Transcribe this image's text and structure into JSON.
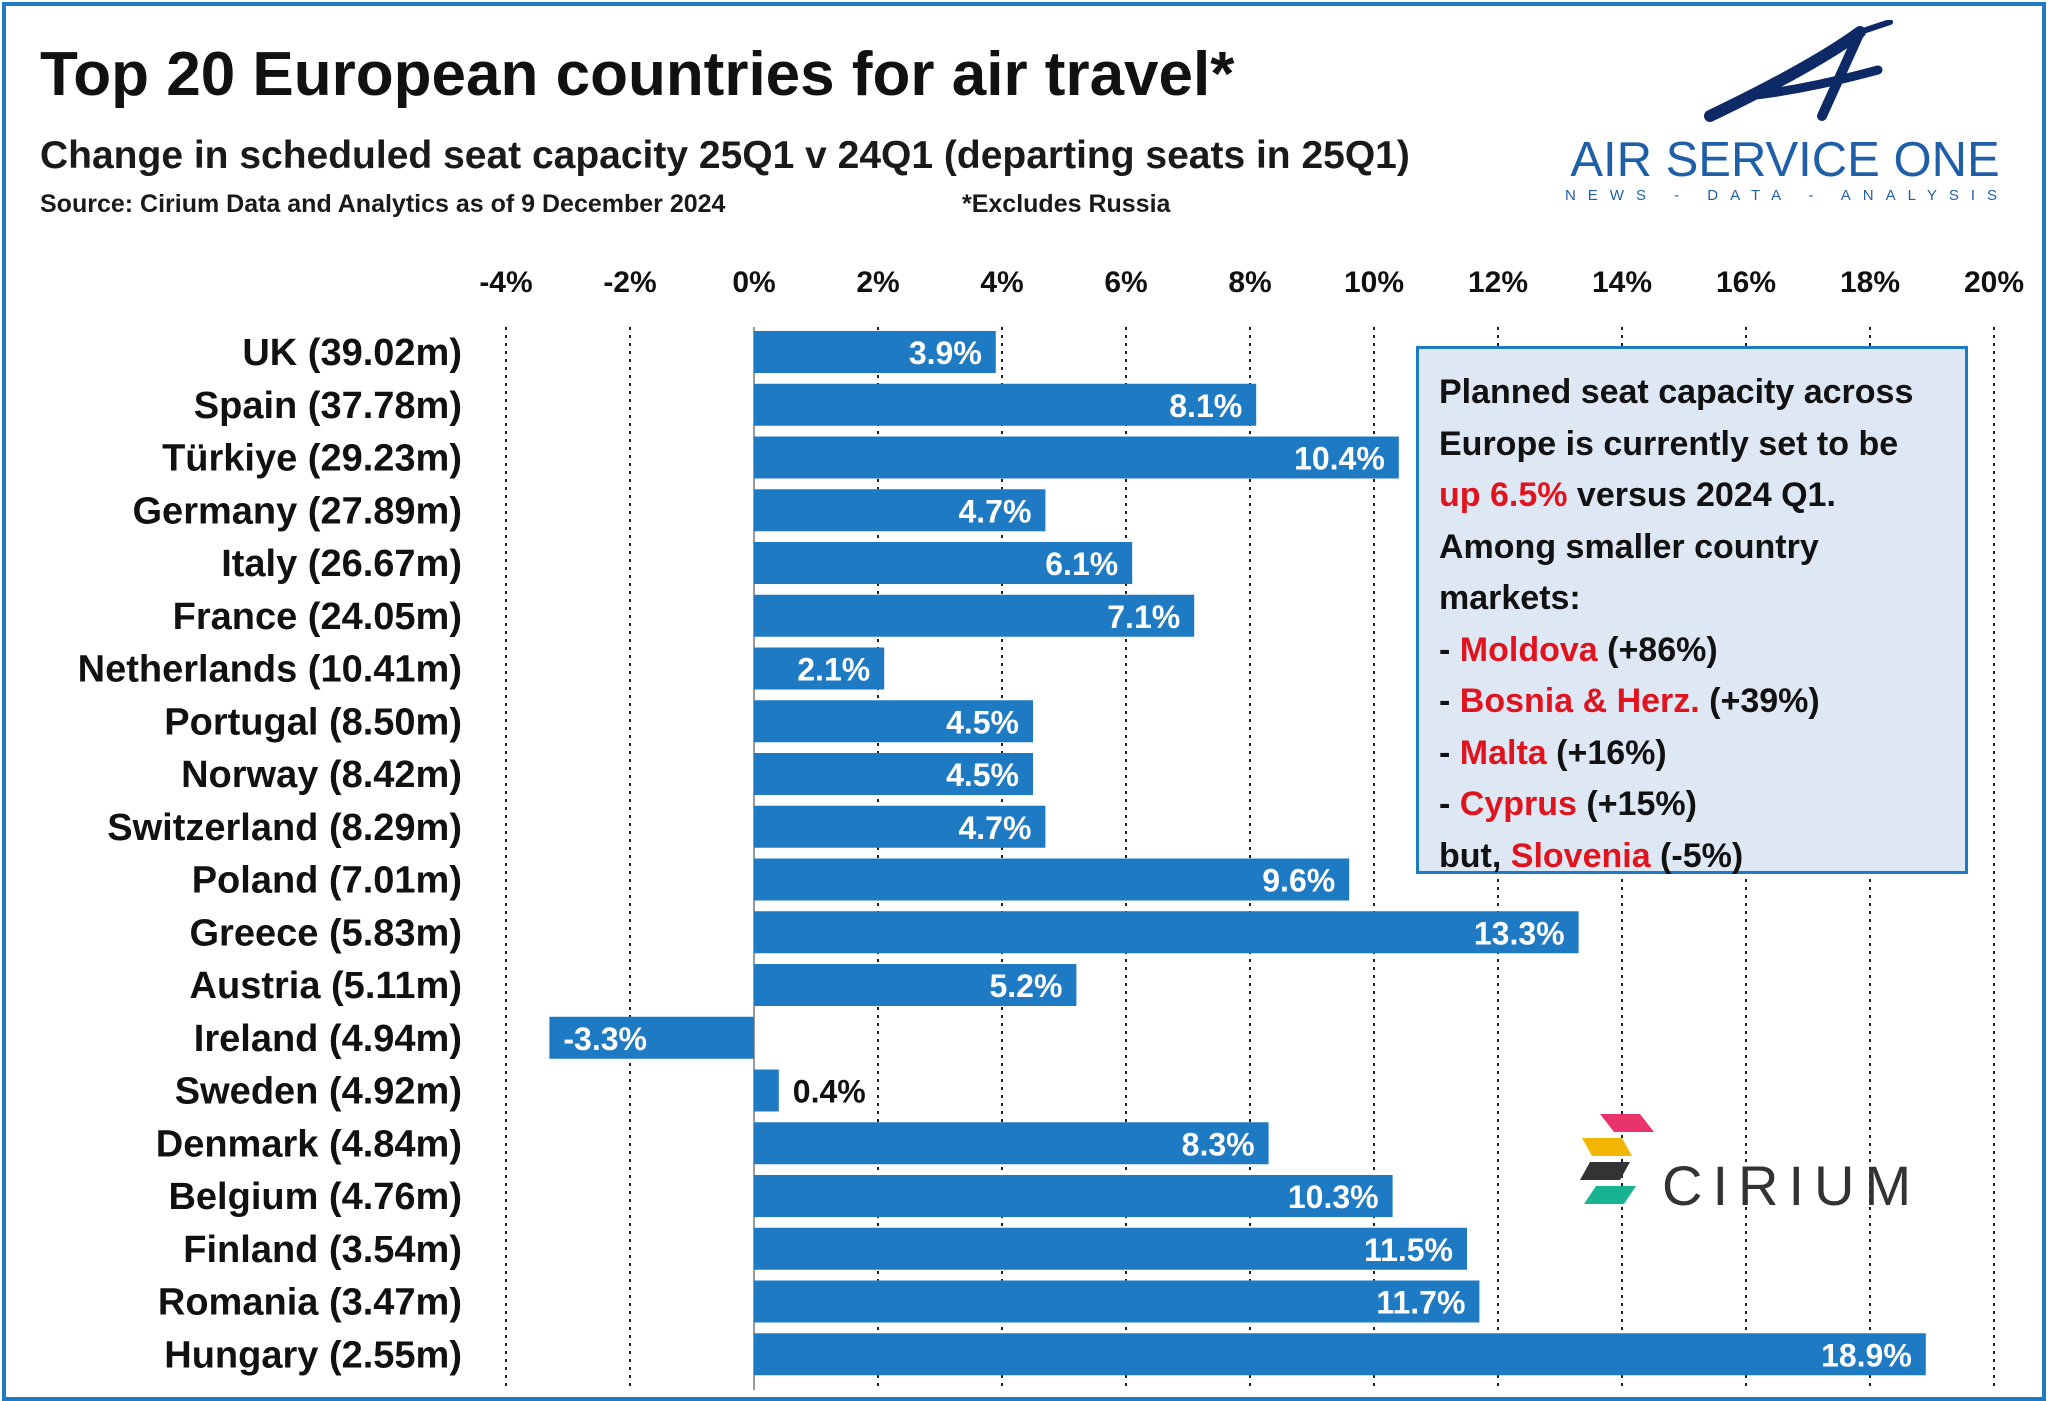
{
  "header": {
    "title": "Top 20 European countries for air travel*",
    "subtitle": "Change in scheduled seat capacity 25Q1 v 24Q1 (departing seats in 25Q1)",
    "source": "Source: Cirium Data and Analytics as of 9 December 2024",
    "footnote": "*Excludes Russia"
  },
  "logos": {
    "air_service_one": {
      "name": "AIR SERVICE ONE",
      "tagline": "NEWS - DATA - ANALYSIS"
    },
    "cirium": {
      "name": "CIRIUM"
    }
  },
  "colors": {
    "bar": "#1f7ac4",
    "label_inside": "#ffffff",
    "label_outside": "#111111",
    "highlight": "#e0141e",
    "note_bg": "#dde8f4"
  },
  "note": {
    "lines": [
      [
        {
          "text": "Planned seat capacity across"
        }
      ],
      [
        {
          "text": "Europe is currently set to be"
        }
      ],
      [
        {
          "text": "up 6.5%",
          "red": true
        },
        {
          "text": " versus 2024 Q1."
        }
      ],
      [
        {
          "text": "Among smaller country"
        }
      ],
      [
        {
          "text": "markets:"
        }
      ],
      [
        {
          "text": "- "
        },
        {
          "text": "Moldova",
          "red": true
        },
        {
          "text": " (+86%)"
        }
      ],
      [
        {
          "text": "- "
        },
        {
          "text": "Bosnia & Herz.",
          "red": true
        },
        {
          "text": " (+39%)"
        }
      ],
      [
        {
          "text": "- "
        },
        {
          "text": "Malta",
          "red": true
        },
        {
          "text": " (+16%)"
        }
      ],
      [
        {
          "text": "- "
        },
        {
          "text": "Cyprus",
          "red": true
        },
        {
          "text": " (+15%)"
        }
      ],
      [
        {
          "text": "but, "
        },
        {
          "text": "Slovenia",
          "red": true
        },
        {
          "text": " (-5%)"
        }
      ]
    ]
  },
  "chart_data": {
    "type": "bar",
    "orientation": "horizontal",
    "categories": [
      "UK (39.02m)",
      "Spain (37.78m)",
      "Türkiye (29.23m)",
      "Germany (27.89m)",
      "Italy (26.67m)",
      "France (24.05m)",
      "Netherlands (10.41m)",
      "Portugal (8.50m)",
      "Norway (8.42m)",
      "Switzerland (8.29m)",
      "Poland (7.01m)",
      "Greece (5.83m)",
      "Austria (5.11m)",
      "Ireland (4.94m)",
      "Sweden (4.92m)",
      "Denmark (4.84m)",
      "Belgium (4.76m)",
      "Finland (3.54m)",
      "Romania (3.47m)",
      "Hungary (2.55m)"
    ],
    "values": [
      3.9,
      8.1,
      10.4,
      4.7,
      6.1,
      7.1,
      2.1,
      4.5,
      4.5,
      4.7,
      9.6,
      13.3,
      5.2,
      -3.3,
      0.4,
      8.3,
      10.3,
      11.5,
      11.7,
      18.9
    ],
    "data_labels": [
      "3.9%",
      "8.1%",
      "10.4%",
      "4.7%",
      "6.1%",
      "7.1%",
      "2.1%",
      "4.5%",
      "4.5%",
      "4.7%",
      "9.6%",
      "13.3%",
      "5.2%",
      "-3.3%",
      "0.4%",
      "8.3%",
      "10.3%",
      "11.5%",
      "11.7%",
      "18.9%"
    ],
    "xlim": [
      -4,
      20
    ],
    "x_ticks": [
      -4,
      -2,
      0,
      2,
      4,
      6,
      8,
      10,
      12,
      14,
      16,
      18,
      20
    ],
    "x_tick_labels": [
      "-4%",
      "-2%",
      "0%",
      "2%",
      "4%",
      "6%",
      "8%",
      "10%",
      "12%",
      "14%",
      "16%",
      "18%",
      "20%"
    ],
    "axis_position": "top",
    "grid": "vertical dotted",
    "legend": "none"
  }
}
